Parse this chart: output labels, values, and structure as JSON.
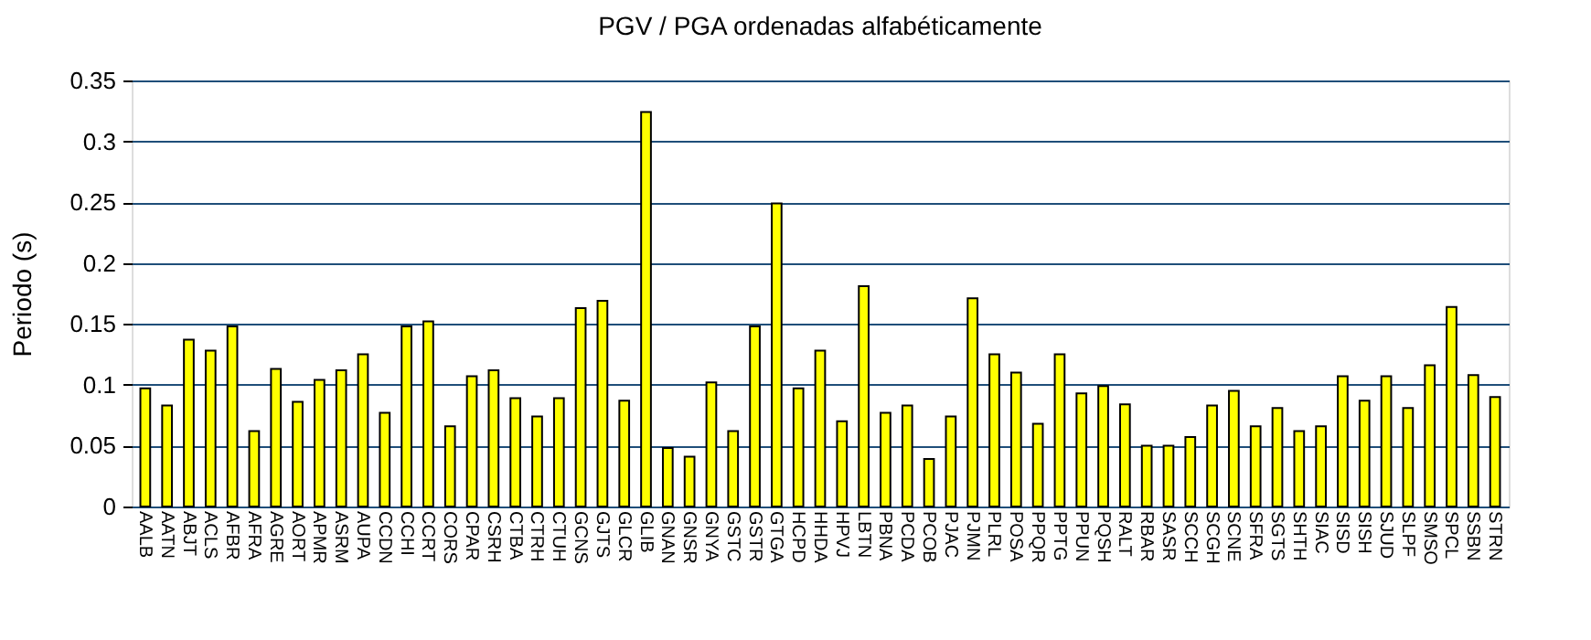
{
  "chart_data": {
    "type": "bar",
    "title": "PGV / PGA ordenadas alfabéticamente",
    "ylabel": "Periodo (s)",
    "categories": [
      "AALB",
      "AATN",
      "ABJT",
      "ACLS",
      "AFBR",
      "AFRA",
      "AGRE",
      "AORT",
      "APMR",
      "ASRM",
      "AUPA",
      "CCDN",
      "CCHI",
      "CCRT",
      "CORS",
      "CPAR",
      "CSRH",
      "CTBA",
      "CTRH",
      "CTUH",
      "GCNS",
      "GJTS",
      "GLCR",
      "GLIB",
      "GNAN",
      "GNSR",
      "GNYA",
      "GSTC",
      "GSTR",
      "GTGA",
      "HCPD",
      "HHDA",
      "HPVJ",
      "LBTN",
      "PBNA",
      "PCDA",
      "PCOB",
      "PJAC",
      "PJMN",
      "PLRL",
      "POSA",
      "PPQR",
      "PPTG",
      "PPUN",
      "PQSH",
      "RALT",
      "RBAR",
      "SASR",
      "SCCH",
      "SCGH",
      "SCNE",
      "SFRA",
      "SGTS",
      "SHTH",
      "SIAC",
      "SISD",
      "SISH",
      "SJUD",
      "SLPF",
      "SMSO",
      "SPCL",
      "SSBN",
      "STRN"
    ],
    "values": [
      0.097,
      0.083,
      0.137,
      0.128,
      0.148,
      0.062,
      0.113,
      0.086,
      0.104,
      0.112,
      0.125,
      0.077,
      0.148,
      0.152,
      0.066,
      0.107,
      0.112,
      0.089,
      0.074,
      0.089,
      0.163,
      0.169,
      0.087,
      0.324,
      0.048,
      0.041,
      0.102,
      0.062,
      0.148,
      0.249,
      0.097,
      0.128,
      0.07,
      0.181,
      0.077,
      0.083,
      0.039,
      0.074,
      0.171,
      0.125,
      0.11,
      0.068,
      0.125,
      0.093,
      0.099,
      0.084,
      0.05,
      0.05,
      0.057,
      0.083,
      0.095,
      0.066,
      0.081,
      0.062,
      0.066,
      0.107,
      0.087,
      0.107,
      0.081,
      0.116,
      0.164,
      0.108,
      0.09
    ],
    "color": "#ffff00",
    "ylim": [
      0,
      0.35
    ],
    "yticks": [
      0,
      0.05,
      0.1,
      0.15,
      0.2,
      0.25,
      0.3,
      0.35
    ],
    "grid": "y"
  }
}
